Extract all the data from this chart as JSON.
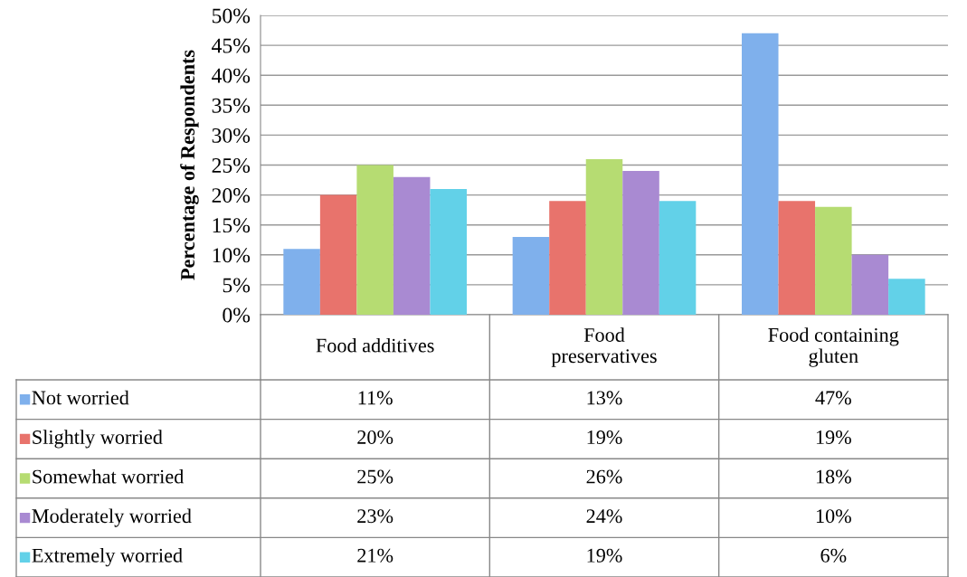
{
  "chart_data": {
    "type": "bar",
    "ylabel": "Percentage of Respondents",
    "categories": [
      "Food additives",
      "Food\npreservatives",
      "Food containing\ngluten"
    ],
    "series": [
      {
        "name": "Not worried",
        "color": "#7fb0ec",
        "values": [
          11,
          13,
          47
        ],
        "value_labels": [
          "11%",
          "13%",
          "47%"
        ]
      },
      {
        "name": "Slightly worried",
        "color": "#e8736c",
        "values": [
          20,
          19,
          19
        ],
        "value_labels": [
          "20%",
          "19%",
          "19%"
        ]
      },
      {
        "name": "Somewhat worried",
        "color": "#b6dc72",
        "values": [
          25,
          26,
          18
        ],
        "value_labels": [
          "25%",
          "26%",
          "18%"
        ]
      },
      {
        "name": "Moderately worried",
        "color": "#a98ad2",
        "values": [
          23,
          24,
          10
        ],
        "value_labels": [
          "23%",
          "24%",
          "10%"
        ]
      },
      {
        "name": "Extremely worried",
        "color": "#62d1e8",
        "values": [
          21,
          19,
          6
        ],
        "value_labels": [
          "21%",
          "19%",
          "6%"
        ]
      }
    ],
    "ylim": [
      0,
      50
    ],
    "yticks": [
      {
        "value": 0,
        "label": "0%"
      },
      {
        "value": 5,
        "label": "5%"
      },
      {
        "value": 10,
        "label": "10%"
      },
      {
        "value": 15,
        "label": "15%"
      },
      {
        "value": 20,
        "label": "20%"
      },
      {
        "value": 25,
        "label": "25%"
      },
      {
        "value": 30,
        "label": "30%"
      },
      {
        "value": 35,
        "label": "35%"
      },
      {
        "value": 40,
        "label": "40%"
      },
      {
        "value": 45,
        "label": "45%"
      },
      {
        "value": 50,
        "label": "50%"
      }
    ],
    "grid": "y",
    "legend": "bottom"
  }
}
